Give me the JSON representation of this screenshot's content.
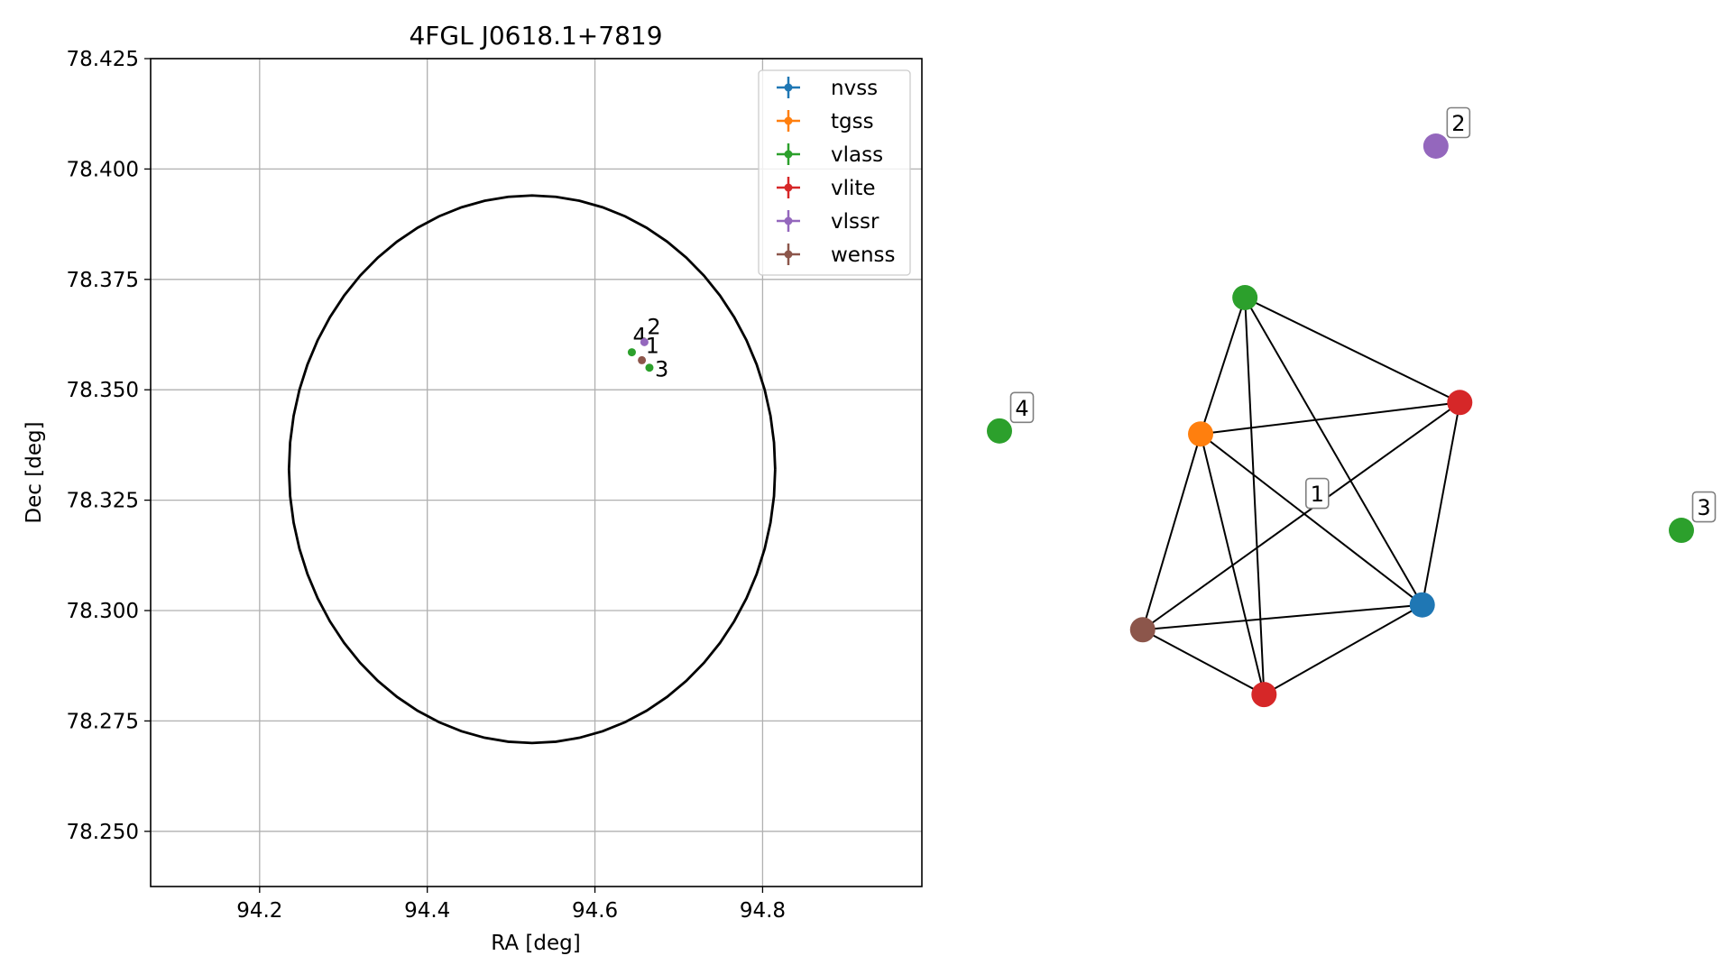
{
  "chart_data": [
    {
      "type": "scatter",
      "title": "4FGL J0618.1+7819",
      "xlabel": "RA [deg]",
      "ylabel": "Dec [deg]",
      "xlim": [
        94.07,
        94.99
      ],
      "ylim": [
        78.2375,
        78.425
      ],
      "x_ticks": [
        94.2,
        94.4,
        94.6,
        94.8
      ],
      "y_ticks": [
        78.25,
        78.275,
        78.3,
        78.325,
        78.35,
        78.375,
        78.4,
        78.425
      ],
      "grid": true,
      "legend_position": "upper right",
      "ellipse": {
        "center_ra": 94.525,
        "center_dec": 78.332,
        "semi_ra": 0.29,
        "semi_dec": 0.062,
        "color": "#000000"
      },
      "series": [
        {
          "name": "nvss",
          "color": "#1f77b4",
          "points": []
        },
        {
          "name": "tgss",
          "color": "#ff7f0e",
          "points": []
        },
        {
          "name": "vlass",
          "color": "#2ca02c",
          "points": [
            {
              "ra": 94.644,
              "dec": 78.3585,
              "label": "4"
            },
            {
              "ra": 94.665,
              "dec": 78.355,
              "label": "3"
            }
          ]
        },
        {
          "name": "vlite",
          "color": "#d62728",
          "points": []
        },
        {
          "name": "vlssr",
          "color": "#9467bd",
          "points": [
            {
              "ra": 94.659,
              "dec": 78.3608,
              "label": "2"
            }
          ]
        },
        {
          "name": "wenss",
          "color": "#8c564b",
          "points": [
            {
              "ra": 94.656,
              "dec": 78.3567,
              "label": "1"
            }
          ]
        }
      ]
    },
    {
      "type": "network",
      "nodes": [
        {
          "id": "n_green_top",
          "color": "#2ca02c",
          "x": 0.36,
          "y": 0.25,
          "label": ""
        },
        {
          "id": "n_orange",
          "color": "#ff7f0e",
          "x": 0.295,
          "y": 0.475,
          "label": ""
        },
        {
          "id": "n_red_right",
          "color": "#d62728",
          "x": 0.675,
          "y": 0.423,
          "label": ""
        },
        {
          "id": "n_blue",
          "color": "#1f77b4",
          "x": 0.62,
          "y": 0.757,
          "label": ""
        },
        {
          "id": "n_brown",
          "color": "#8c564b",
          "x": 0.21,
          "y": 0.798,
          "label": ""
        },
        {
          "id": "n_red_bottom",
          "color": "#d62728",
          "x": 0.388,
          "y": 0.905,
          "label": ""
        },
        {
          "id": "n_purple",
          "color": "#9467bd",
          "x": 0.64,
          "y": 0.0,
          "label": "2"
        },
        {
          "id": "n_green_left",
          "color": "#2ca02c",
          "x": 0.0,
          "y": 0.47,
          "label": "4"
        },
        {
          "id": "n_green_right",
          "color": "#2ca02c",
          "x": 1.0,
          "y": 0.634,
          "label": "3"
        }
      ],
      "edges": [
        [
          "n_green_top",
          "n_orange"
        ],
        [
          "n_green_top",
          "n_red_right"
        ],
        [
          "n_green_top",
          "n_blue"
        ],
        [
          "n_green_top",
          "n_red_bottom"
        ],
        [
          "n_orange",
          "n_red_right"
        ],
        [
          "n_orange",
          "n_blue"
        ],
        [
          "n_orange",
          "n_brown"
        ],
        [
          "n_orange",
          "n_red_bottom"
        ],
        [
          "n_red_right",
          "n_blue"
        ],
        [
          "n_red_right",
          "n_brown"
        ],
        [
          "n_blue",
          "n_brown"
        ],
        [
          "n_blue",
          "n_red_bottom"
        ],
        [
          "n_brown",
          "n_red_bottom"
        ]
      ],
      "component_labels": [
        {
          "text": "1",
          "x": 0.466,
          "y": 0.573
        }
      ]
    }
  ]
}
